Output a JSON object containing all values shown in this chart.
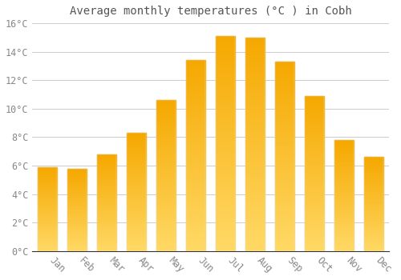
{
  "title": "Average monthly temperatures (°C ) in Cobh",
  "months": [
    "Jan",
    "Feb",
    "Mar",
    "Apr",
    "May",
    "Jun",
    "Jul",
    "Aug",
    "Sep",
    "Oct",
    "Nov",
    "Dec"
  ],
  "values": [
    5.9,
    5.8,
    6.8,
    8.3,
    10.6,
    13.4,
    15.1,
    15.0,
    13.3,
    10.9,
    7.8,
    6.6
  ],
  "bar_color_top": "#F5A800",
  "bar_color_bottom": "#FFD966",
  "ylim": [
    0,
    16
  ],
  "yticks": [
    0,
    2,
    4,
    6,
    8,
    10,
    12,
    14,
    16
  ],
  "ytick_labels": [
    "0°C",
    "2°C",
    "4°C",
    "6°C",
    "8°C",
    "10°C",
    "12°C",
    "14°C",
    "16°C"
  ],
  "grid_color": "#cccccc",
  "bg_color": "#ffffff",
  "title_fontsize": 10,
  "tick_fontsize": 8.5,
  "bar_width": 0.65
}
